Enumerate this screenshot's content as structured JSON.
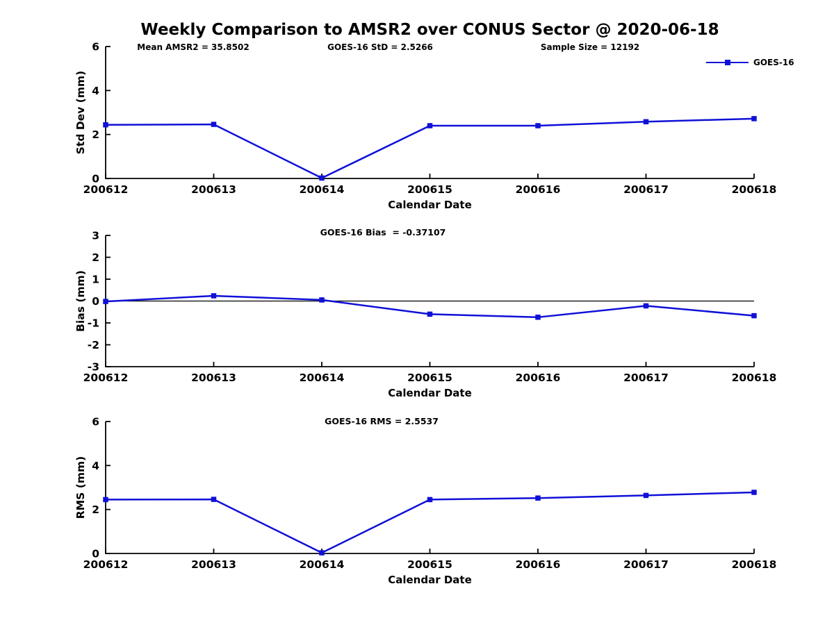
{
  "title": "Weekly Comparison to AMSR2 over CONUS Sector @ 2020-06-18",
  "stats": {
    "mean_amsr2": "Mean AMSR2 = 35.8502",
    "goes16_std": "GOES-16 StD = 2.5266",
    "sample_size": "Sample Size = 12192"
  },
  "legend": {
    "label": "GOES-16",
    "position": "outside-top-right"
  },
  "colors": {
    "line": "#1010d8",
    "axis": "#000000",
    "background": "#ffffff"
  },
  "chart_data": [
    {
      "type": "line",
      "name": "std-dev",
      "title": "",
      "annotation": "",
      "categories": [
        "200612",
        "200613",
        "200614",
        "200615",
        "200616",
        "200617",
        "200618"
      ],
      "series": [
        {
          "name": "GOES-16",
          "values": [
            2.44,
            2.46,
            0.02,
            2.4,
            2.4,
            2.58,
            2.72
          ]
        }
      ],
      "xlabel": "Calendar Date",
      "ylabel": "Std Dev (mm)",
      "ylim": [
        0,
        6
      ],
      "yticks": [
        0,
        2,
        4,
        6
      ],
      "zero_line": false,
      "grid": false
    },
    {
      "type": "line",
      "name": "bias",
      "title": "",
      "annotation": "GOES-16 Bias  = -0.37107",
      "categories": [
        "200612",
        "200613",
        "200614",
        "200615",
        "200616",
        "200617",
        "200618"
      ],
      "series": [
        {
          "name": "GOES-16",
          "values": [
            -0.02,
            0.24,
            0.05,
            -0.6,
            -0.74,
            -0.22,
            -0.67
          ]
        }
      ],
      "xlabel": "Calendar Date",
      "ylabel": "Bias (mm)",
      "ylim": [
        -3,
        3
      ],
      "yticks": [
        3,
        2,
        1,
        0,
        -1,
        -2,
        -3
      ],
      "zero_line": true,
      "grid": false
    },
    {
      "type": "line",
      "name": "rms",
      "title": "",
      "annotation": "GOES-16 RMS = 2.5537",
      "categories": [
        "200612",
        "200613",
        "200614",
        "200615",
        "200616",
        "200617",
        "200618"
      ],
      "series": [
        {
          "name": "GOES-16",
          "values": [
            2.45,
            2.46,
            0.03,
            2.45,
            2.52,
            2.64,
            2.78
          ]
        }
      ],
      "xlabel": "Calendar Date",
      "ylabel": "RMS (mm)",
      "ylim": [
        0,
        6
      ],
      "yticks": [
        0,
        2,
        4,
        6
      ],
      "zero_line": false,
      "grid": false
    }
  ]
}
